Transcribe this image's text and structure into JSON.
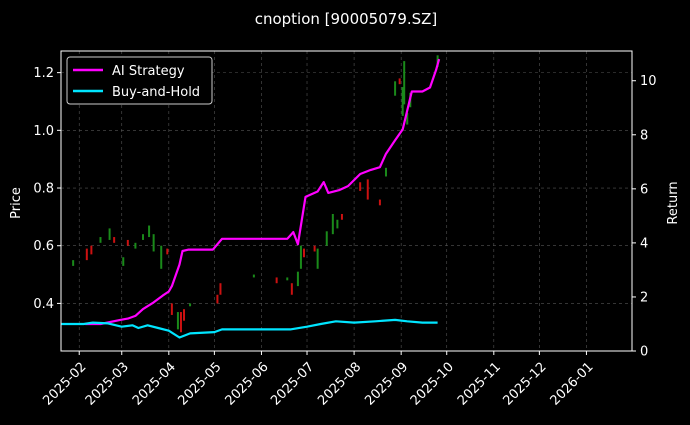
{
  "chart_data": {
    "type": "line",
    "title": "cnoption [90005079.SZ]",
    "ylabel_left": "Price",
    "ylabel_right": "Return",
    "x_ticks": [
      "2025-02",
      "2025-03",
      "2025-04",
      "2025-05",
      "2025-06",
      "2025-07",
      "2025-08",
      "2025-09",
      "2025-10",
      "2025-11",
      "2025-12",
      "2026-01"
    ],
    "y_left_ticks": [
      "0.4",
      "0.6",
      "0.8",
      "1.0",
      "1.2"
    ],
    "y_left_range": [
      0.235,
      1.275
    ],
    "y_right_ticks": [
      "0",
      "2",
      "4",
      "6",
      "8",
      "10"
    ],
    "y_right_range": [
      0,
      11.1
    ],
    "x_range": [
      "2025-01-20",
      "2026-01-31"
    ],
    "grid": true,
    "legend_position": "top-left",
    "legend": [
      "AI Strategy",
      "Buy-and-Hold"
    ],
    "colors": {
      "background": "#000000",
      "ai_strategy": "#ff00ff",
      "buy_and_hold": "#00e5ff",
      "candle_up": "#1a8a1a",
      "candle_down": "#cc1111",
      "grid": "#555555"
    },
    "series": [
      {
        "name": "AI Strategy",
        "axis": "right",
        "points": [
          [
            "2025-02-05",
            1.0
          ],
          [
            "2025-02-15",
            1.0
          ],
          [
            "2025-02-28",
            1.15
          ],
          [
            "2025-03-05",
            1.2
          ],
          [
            "2025-03-10",
            1.3
          ],
          [
            "2025-03-15",
            1.55
          ],
          [
            "2025-03-22",
            1.8
          ],
          [
            "2025-03-28",
            2.05
          ],
          [
            "2025-04-01",
            2.2
          ],
          [
            "2025-04-03",
            2.4
          ],
          [
            "2025-04-08",
            3.2
          ],
          [
            "2025-04-10",
            3.7
          ],
          [
            "2025-04-14",
            3.75
          ],
          [
            "2025-04-18",
            3.75
          ],
          [
            "2025-04-30",
            3.75
          ],
          [
            "2025-05-06",
            4.15
          ],
          [
            "2025-05-15",
            4.15
          ],
          [
            "2025-06-10",
            4.15
          ],
          [
            "2025-06-18",
            4.15
          ],
          [
            "2025-06-22",
            4.4
          ],
          [
            "2025-06-25",
            3.95
          ],
          [
            "2025-06-30",
            5.7
          ],
          [
            "2025-07-08",
            5.9
          ],
          [
            "2025-07-12",
            6.25
          ],
          [
            "2025-07-15",
            5.85
          ],
          [
            "2025-07-22",
            5.95
          ],
          [
            "2025-07-28",
            6.1
          ],
          [
            "2025-08-05",
            6.55
          ],
          [
            "2025-08-12",
            6.7
          ],
          [
            "2025-08-18",
            6.8
          ],
          [
            "2025-08-22",
            7.3
          ],
          [
            "2025-08-28",
            7.8
          ],
          [
            "2025-09-02",
            8.2
          ],
          [
            "2025-09-08",
            9.6
          ],
          [
            "2025-09-15",
            9.6
          ],
          [
            "2025-09-20",
            9.75
          ],
          [
            "2025-09-24",
            10.4
          ],
          [
            "2025-09-26",
            10.8
          ]
        ]
      },
      {
        "name": "Buy-and-Hold",
        "axis": "right",
        "points": [
          [
            "2025-01-20",
            1.0
          ],
          [
            "2025-02-04",
            1.0
          ],
          [
            "2025-02-10",
            1.05
          ],
          [
            "2025-02-20",
            1.02
          ],
          [
            "2025-03-01",
            0.9
          ],
          [
            "2025-03-08",
            0.95
          ],
          [
            "2025-03-12",
            0.85
          ],
          [
            "2025-03-18",
            0.95
          ],
          [
            "2025-03-25",
            0.85
          ],
          [
            "2025-04-01",
            0.75
          ],
          [
            "2025-04-08",
            0.5
          ],
          [
            "2025-04-15",
            0.65
          ],
          [
            "2025-05-01",
            0.7
          ],
          [
            "2025-05-06",
            0.8
          ],
          [
            "2025-06-01",
            0.8
          ],
          [
            "2025-06-20",
            0.8
          ],
          [
            "2025-07-01",
            0.9
          ],
          [
            "2025-07-10",
            1.0
          ],
          [
            "2025-07-20",
            1.1
          ],
          [
            "2025-08-01",
            1.05
          ],
          [
            "2025-08-15",
            1.1
          ],
          [
            "2025-08-28",
            1.15
          ],
          [
            "2025-09-05",
            1.1
          ],
          [
            "2025-09-15",
            1.05
          ],
          [
            "2025-09-25",
            1.05
          ]
        ]
      }
    ],
    "candles": [
      {
        "date": "2025-01-28",
        "low": 0.53,
        "high": 0.55,
        "dir": "up"
      },
      {
        "date": "2025-02-06",
        "low": 0.55,
        "high": 0.59,
        "dir": "down"
      },
      {
        "date": "2025-02-09",
        "low": 0.57,
        "high": 0.6,
        "dir": "down"
      },
      {
        "date": "2025-02-15",
        "low": 0.61,
        "high": 0.63,
        "dir": "up"
      },
      {
        "date": "2025-02-21",
        "low": 0.62,
        "high": 0.66,
        "dir": "up"
      },
      {
        "date": "2025-02-24",
        "low": 0.61,
        "high": 0.63,
        "dir": "down"
      },
      {
        "date": "2025-03-02",
        "low": 0.53,
        "high": 0.56,
        "dir": "up"
      },
      {
        "date": "2025-03-05",
        "low": 0.6,
        "high": 0.62,
        "dir": "down"
      },
      {
        "date": "2025-03-10",
        "low": 0.59,
        "high": 0.61,
        "dir": "up"
      },
      {
        "date": "2025-03-15",
        "low": 0.62,
        "high": 0.64,
        "dir": "up"
      },
      {
        "date": "2025-03-19",
        "low": 0.63,
        "high": 0.67,
        "dir": "up"
      },
      {
        "date": "2025-03-22",
        "low": 0.58,
        "high": 0.64,
        "dir": "up"
      },
      {
        "date": "2025-03-27",
        "low": 0.52,
        "high": 0.6,
        "dir": "up"
      },
      {
        "date": "2025-03-31",
        "low": 0.57,
        "high": 0.59,
        "dir": "down"
      },
      {
        "date": "2025-04-03",
        "low": 0.36,
        "high": 0.4,
        "dir": "down"
      },
      {
        "date": "2025-04-07",
        "low": 0.31,
        "high": 0.37,
        "dir": "up"
      },
      {
        "date": "2025-04-09",
        "low": 0.3,
        "high": 0.37,
        "dir": "down"
      },
      {
        "date": "2025-04-11",
        "low": 0.34,
        "high": 0.38,
        "dir": "down"
      },
      {
        "date": "2025-04-15",
        "low": 0.39,
        "high": 0.4,
        "dir": "up"
      },
      {
        "date": "2025-05-03",
        "low": 0.4,
        "high": 0.43,
        "dir": "down"
      },
      {
        "date": "2025-05-05",
        "low": 0.43,
        "high": 0.47,
        "dir": "down"
      },
      {
        "date": "2025-05-27",
        "low": 0.49,
        "high": 0.5,
        "dir": "up"
      },
      {
        "date": "2025-06-11",
        "low": 0.47,
        "high": 0.49,
        "dir": "down"
      },
      {
        "date": "2025-06-18",
        "low": 0.48,
        "high": 0.49,
        "dir": "up"
      },
      {
        "date": "2025-06-21",
        "low": 0.43,
        "high": 0.47,
        "dir": "down"
      },
      {
        "date": "2025-06-25",
        "low": 0.46,
        "high": 0.51,
        "dir": "up"
      },
      {
        "date": "2025-06-27",
        "low": 0.52,
        "high": 0.6,
        "dir": "up"
      },
      {
        "date": "2025-06-29",
        "low": 0.56,
        "high": 0.59,
        "dir": "down"
      },
      {
        "date": "2025-07-06",
        "low": 0.58,
        "high": 0.6,
        "dir": "down"
      },
      {
        "date": "2025-07-08",
        "low": 0.52,
        "high": 0.59,
        "dir": "up"
      },
      {
        "date": "2025-07-14",
        "low": 0.6,
        "high": 0.65,
        "dir": "up"
      },
      {
        "date": "2025-07-18",
        "low": 0.64,
        "high": 0.71,
        "dir": "up"
      },
      {
        "date": "2025-07-21",
        "low": 0.66,
        "high": 0.69,
        "dir": "up"
      },
      {
        "date": "2025-07-24",
        "low": 0.69,
        "high": 0.71,
        "dir": "down"
      },
      {
        "date": "2025-08-05",
        "low": 0.79,
        "high": 0.82,
        "dir": "down"
      },
      {
        "date": "2025-08-10",
        "low": 0.76,
        "high": 0.83,
        "dir": "down"
      },
      {
        "date": "2025-08-18",
        "low": 0.74,
        "high": 0.76,
        "dir": "down"
      },
      {
        "date": "2025-08-22",
        "low": 0.84,
        "high": 0.87,
        "dir": "up"
      },
      {
        "date": "2025-08-28",
        "low": 1.12,
        "high": 1.17,
        "dir": "up"
      },
      {
        "date": "2025-08-31",
        "low": 1.16,
        "high": 1.18,
        "dir": "down"
      },
      {
        "date": "2025-09-02",
        "low": 1.05,
        "high": 1.15,
        "dir": "up"
      },
      {
        "date": "2025-09-03",
        "low": 1.09,
        "high": 1.24,
        "dir": "up"
      },
      {
        "date": "2025-09-05",
        "low": 1.02,
        "high": 1.06,
        "dir": "up"
      },
      {
        "date": "2025-09-07",
        "low": 1.08,
        "high": 1.13,
        "dir": "up"
      },
      {
        "date": "2025-09-25",
        "low": 1.22,
        "high": 1.26,
        "dir": "up"
      }
    ]
  }
}
